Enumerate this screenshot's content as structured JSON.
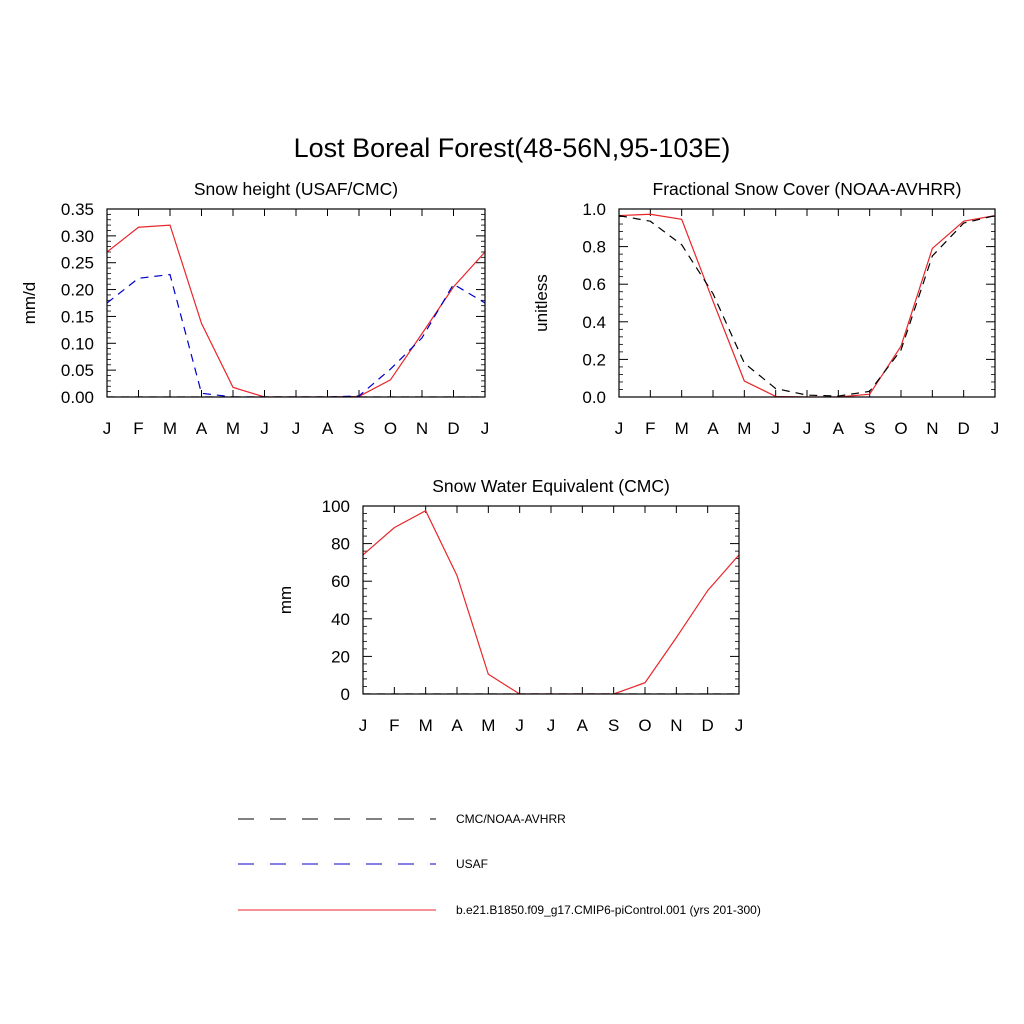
{
  "page_title": "Lost Boreal Forest(48-56N,95-103E)",
  "legend": [
    {
      "label": "CMC/NOAA-AVHRR",
      "color": "#000000",
      "dash": "dashed"
    },
    {
      "label": "USAF",
      "color": "#0000cc",
      "dash": "dashed"
    },
    {
      "label": "b.e21.B1850.f09_g17.CMIP6-piControl.001 (yrs 201-300)",
      "color": "#e8262a",
      "dash": "solid"
    }
  ],
  "chart_data": [
    {
      "type": "line",
      "title": "Snow height (USAF/CMC)",
      "ylabel": "mm/d",
      "xlabel": "",
      "x_ticks": [
        "J",
        "F",
        "M",
        "A",
        "M",
        "J",
        "J",
        "A",
        "S",
        "O",
        "N",
        "D",
        "J"
      ],
      "ylim": [
        0,
        0.35
      ],
      "y_ticks": [
        "0.00",
        "0.05",
        "0.10",
        "0.15",
        "0.20",
        "0.25",
        "0.30",
        "0.35"
      ],
      "series": [
        {
          "values": [
            0.27,
            0.316,
            0.32,
            0.137,
            0.018,
            0.0,
            0.0,
            0.0,
            0.001,
            0.032,
            0.118,
            0.205,
            0.27
          ],
          "color": "#e8262a",
          "dash": "solid"
        },
        {
          "values": [
            0.175,
            0.221,
            0.228,
            0.007,
            0.0,
            0.0,
            0.0,
            0.0,
            0.002,
            0.052,
            0.11,
            0.21,
            0.175
          ],
          "color": "#0000cc",
          "dash": "dashed"
        },
        {
          "values": [
            0,
            0,
            0,
            0,
            0,
            0,
            0,
            0,
            0,
            0,
            0,
            0,
            0
          ],
          "color": "#000000",
          "dash": "dashed"
        }
      ]
    },
    {
      "type": "line",
      "title": "Fractional Snow Cover (NOAA-AVHRR)",
      "ylabel": "unitless",
      "xlabel": "",
      "x_ticks": [
        "J",
        "F",
        "M",
        "A",
        "M",
        "J",
        "J",
        "A",
        "S",
        "O",
        "N",
        "D",
        "J"
      ],
      "ylim": [
        0,
        1.0
      ],
      "y_ticks": [
        "0.0",
        "0.2",
        "0.4",
        "0.6",
        "0.8",
        "1.0"
      ],
      "series": [
        {
          "values": [
            0.965,
            0.972,
            0.945,
            0.51,
            0.085,
            0.003,
            0.0,
            0.0,
            0.015,
            0.27,
            0.79,
            0.935,
            0.965
          ],
          "color": "#e8262a",
          "dash": "solid"
        },
        {
          "values": [
            0.965,
            0.935,
            0.81,
            0.55,
            0.18,
            0.045,
            0.01,
            0.005,
            0.03,
            0.25,
            0.75,
            0.925,
            0.965
          ],
          "color": "#000000",
          "dash": "dashed"
        }
      ]
    },
    {
      "type": "line",
      "title": "Snow Water Equivalent (CMC)",
      "ylabel": "mm",
      "xlabel": "",
      "x_ticks": [
        "J",
        "F",
        "M",
        "A",
        "M",
        "J",
        "J",
        "A",
        "S",
        "O",
        "N",
        "D",
        "J"
      ],
      "ylim": [
        0,
        100
      ],
      "y_ticks": [
        "0",
        "20",
        "40",
        "60",
        "80",
        "100"
      ],
      "series": [
        {
          "values": [
            74,
            88.5,
            97.5,
            63,
            10.5,
            0,
            0,
            0,
            0,
            6,
            30,
            55,
            74
          ],
          "color": "#e8262a",
          "dash": "solid"
        },
        {
          "values": [
            0,
            0,
            0,
            0,
            0,
            0,
            0,
            0,
            0,
            0,
            0,
            0,
            0
          ],
          "color": "#000000",
          "dash": "dashed"
        }
      ]
    }
  ]
}
